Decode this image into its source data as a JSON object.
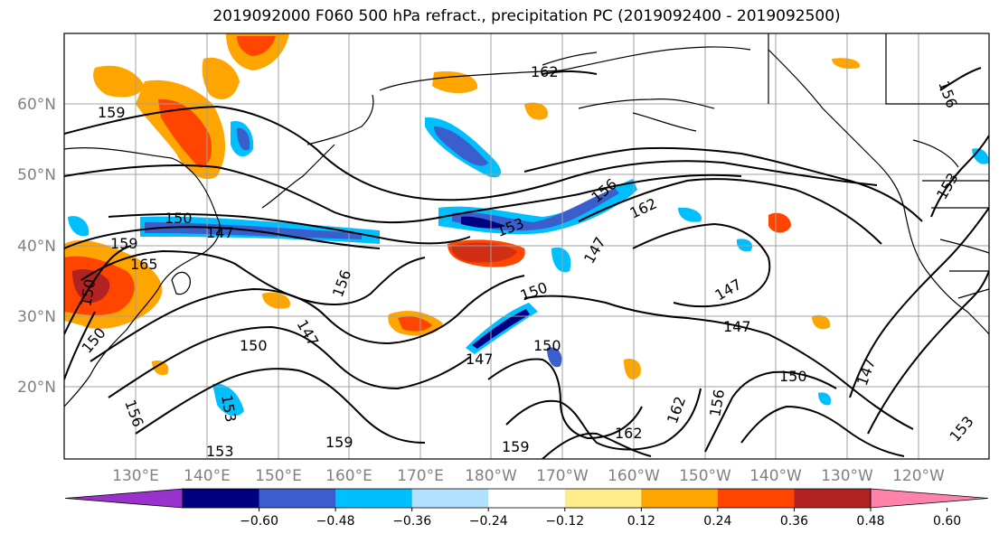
{
  "title": "2019092000 F060 500 hPa refract., precipitation PC (2019092400 - 2019092500)",
  "lat_labels": [
    "60°N",
    "50°N",
    "40°N",
    "30°N",
    "20°N"
  ],
  "lon_labels": [
    "130°E",
    "140°E",
    "150°E",
    "160°E",
    "170°E",
    "180°W",
    "170°W",
    "160°W",
    "150°W",
    "140°W",
    "130°W",
    "120°W"
  ],
  "colorbar": {
    "ticks": [
      "−0.60",
      "−0.48",
      "−0.36",
      "−0.24",
      "−0.12",
      "0.12",
      "0.24",
      "0.36",
      "0.48",
      "0.60"
    ],
    "colors": [
      "#9932cc",
      "#000080",
      "#3a5fcd",
      "#00bfff",
      "#b0e2ff",
      "#ffffff",
      "#ffec8b",
      "#ffa500",
      "#ff4500",
      "#b22222",
      "#ff82ab"
    ]
  },
  "contour_labels": [
    "162",
    "159",
    "156",
    "153",
    "150",
    "147",
    "165",
    "159",
    "150",
    "153",
    "156",
    "150",
    "147",
    "150",
    "147",
    "150",
    "147",
    "150",
    "153",
    "159",
    "159",
    "162",
    "162",
    "156",
    "153",
    "156",
    "150",
    "147",
    "147",
    "156",
    "147",
    "162",
    "153"
  ],
  "colors": {
    "contour": "#000000",
    "grid": "#a0a0a0",
    "coast": "#000000"
  }
}
